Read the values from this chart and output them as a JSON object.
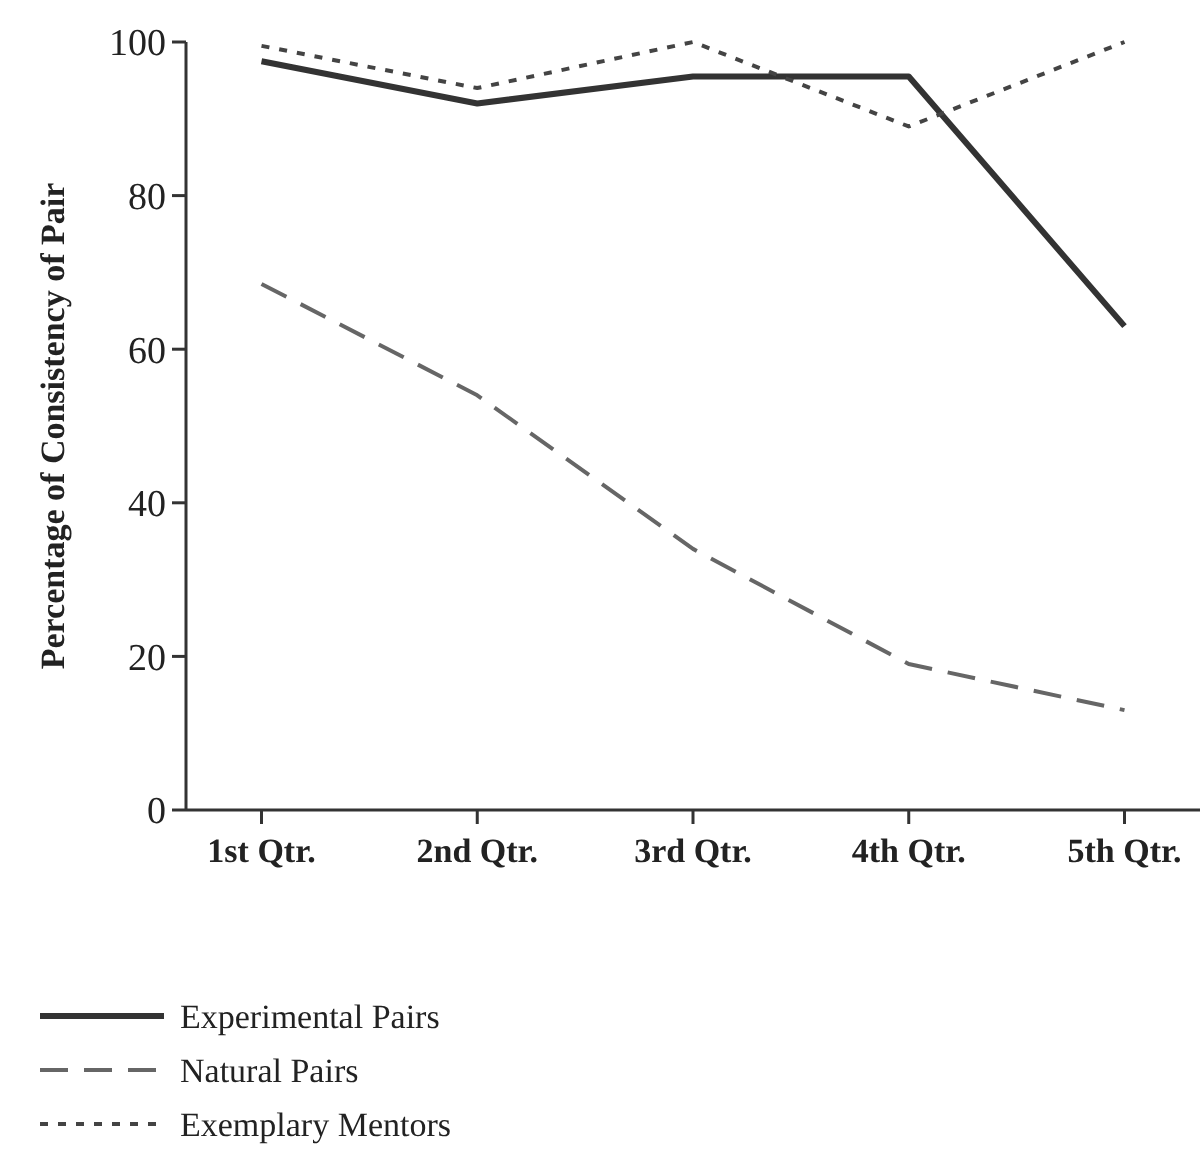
{
  "chart_data": {
    "type": "line",
    "ylabel": "Percentage of Consistency of Pair",
    "categories": [
      "1st Qtr.",
      "2nd Qtr.",
      "3rd Qtr.",
      "4th Qtr.",
      "5th Qtr."
    ],
    "ylim": [
      0,
      100
    ],
    "yticks": [
      0,
      20,
      40,
      60,
      80,
      100
    ],
    "legend": "bottom",
    "grid": false,
    "marker": "none",
    "series": [
      {
        "name": "Experimental Pairs",
        "color": "#333333",
        "line_style": "solid",
        "values": [
          97.5,
          92,
          95.5,
          95.5,
          63
        ]
      },
      {
        "name": "Natural Pairs",
        "color": "#666666",
        "line_style": "dashed",
        "values": [
          68.5,
          54,
          34,
          19,
          13
        ]
      },
      {
        "name": "Exemplary Mentors",
        "color": "#444444",
        "line_style": "dotted",
        "values": [
          99.5,
          94,
          100,
          89,
          100
        ]
      }
    ]
  }
}
